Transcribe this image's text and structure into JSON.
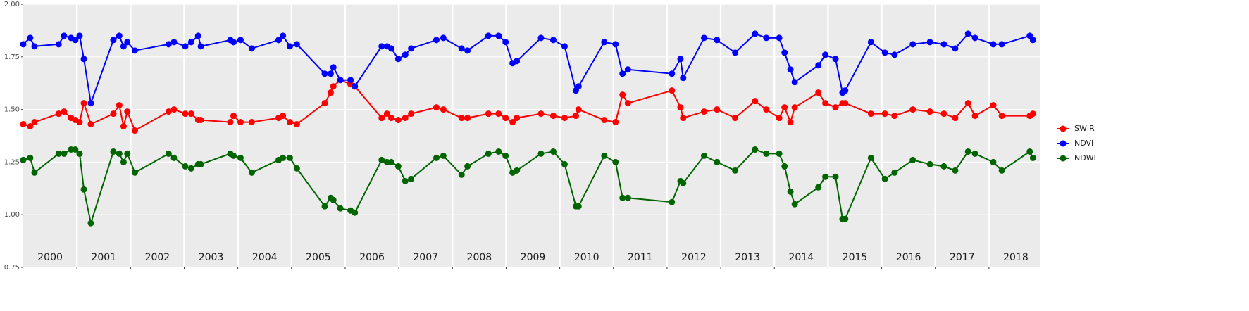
{
  "chart_data": {
    "type": "line",
    "x": [
      2000.0,
      2000.13,
      2000.21,
      2000.66,
      2000.76,
      2000.89,
      2000.97,
      2001.05,
      2001.13,
      2001.26,
      2001.68,
      2001.79,
      2001.87,
      2001.94,
      2002.08,
      2002.71,
      2002.81,
      2003.02,
      2003.13,
      2003.26,
      2003.31,
      2003.86,
      2003.92,
      2004.05,
      2004.26,
      2004.76,
      2004.84,
      2004.97,
      2005.1,
      2005.62,
      2005.73,
      2005.78,
      2005.91,
      2006.1,
      2006.18,
      2006.68,
      2006.78,
      2006.86,
      2006.99,
      2007.12,
      2007.23,
      2007.7,
      2007.83,
      2008.17,
      2008.28,
      2008.67,
      2008.86,
      2008.99,
      2009.12,
      2009.2,
      2009.65,
      2009.88,
      2010.09,
      2010.3,
      2010.35,
      2010.83,
      2011.04,
      2011.17,
      2011.27,
      2012.09,
      2012.25,
      2012.3,
      2012.69,
      2012.93,
      2013.27,
      2013.64,
      2013.85,
      2014.09,
      2014.19,
      2014.3,
      2014.38,
      2014.82,
      2014.95,
      2015.14,
      2015.27,
      2015.32,
      2015.8,
      2016.06,
      2016.24,
      2016.58,
      2016.9,
      2017.16,
      2017.37,
      2017.61,
      2017.74,
      2018.08,
      2018.24,
      2018.76,
      2018.82
    ],
    "series": [
      {
        "name": "SWIR",
        "color": "#ff0000",
        "values": [
          1.43,
          1.42,
          1.44,
          1.48,
          1.49,
          1.46,
          1.45,
          1.44,
          1.53,
          1.43,
          1.48,
          1.52,
          1.42,
          1.49,
          1.4,
          1.49,
          1.5,
          1.48,
          1.48,
          1.45,
          1.45,
          1.44,
          1.47,
          1.44,
          1.44,
          1.46,
          1.47,
          1.44,
          1.43,
          1.53,
          1.58,
          1.61,
          1.64,
          1.62,
          1.61,
          1.46,
          1.48,
          1.46,
          1.45,
          1.46,
          1.48,
          1.51,
          1.5,
          1.46,
          1.46,
          1.48,
          1.48,
          1.46,
          1.44,
          1.46,
          1.48,
          1.47,
          1.46,
          1.47,
          1.5,
          1.45,
          1.44,
          1.57,
          1.53,
          1.59,
          1.51,
          1.46,
          1.49,
          1.5,
          1.46,
          1.54,
          1.5,
          1.46,
          1.51,
          1.44,
          1.51,
          1.58,
          1.53,
          1.51,
          1.53,
          1.53,
          1.48,
          1.48,
          1.47,
          1.5,
          1.49,
          1.48,
          1.46,
          1.53,
          1.47,
          1.52,
          1.47,
          1.47,
          1.48
        ]
      },
      {
        "name": "NDVI",
        "color": "#0000ff",
        "values": [
          1.81,
          1.84,
          1.8,
          1.81,
          1.85,
          1.84,
          1.83,
          1.85,
          1.74,
          1.53,
          1.83,
          1.85,
          1.8,
          1.82,
          1.78,
          1.81,
          1.82,
          1.8,
          1.82,
          1.85,
          1.8,
          1.83,
          1.82,
          1.83,
          1.79,
          1.83,
          1.85,
          1.8,
          1.81,
          1.67,
          1.67,
          1.7,
          1.64,
          1.64,
          1.61,
          1.8,
          1.8,
          1.79,
          1.74,
          1.76,
          1.79,
          1.83,
          1.84,
          1.79,
          1.78,
          1.85,
          1.85,
          1.82,
          1.72,
          1.73,
          1.84,
          1.83,
          1.8,
          1.59,
          1.61,
          1.82,
          1.81,
          1.67,
          1.69,
          1.67,
          1.74,
          1.65,
          1.84,
          1.83,
          1.77,
          1.86,
          1.84,
          1.84,
          1.77,
          1.69,
          1.63,
          1.71,
          1.76,
          1.74,
          1.58,
          1.59,
          1.82,
          1.77,
          1.76,
          1.81,
          1.82,
          1.81,
          1.79,
          1.86,
          1.84,
          1.81,
          1.81,
          1.85,
          1.83
        ]
      },
      {
        "name": "NDWI",
        "color": "#006400",
        "values": [
          1.26,
          1.27,
          1.2,
          1.29,
          1.29,
          1.31,
          1.31,
          1.29,
          1.12,
          0.96,
          1.3,
          1.29,
          1.25,
          1.29,
          1.2,
          1.29,
          1.27,
          1.23,
          1.22,
          1.24,
          1.24,
          1.29,
          1.28,
          1.27,
          1.2,
          1.26,
          1.27,
          1.27,
          1.22,
          1.04,
          1.08,
          1.07,
          1.03,
          1.02,
          1.01,
          1.26,
          1.25,
          1.25,
          1.23,
          1.16,
          1.17,
          1.27,
          1.28,
          1.19,
          1.23,
          1.29,
          1.3,
          1.28,
          1.2,
          1.21,
          1.29,
          1.3,
          1.24,
          1.04,
          1.04,
          1.28,
          1.25,
          1.08,
          1.08,
          1.06,
          1.16,
          1.15,
          1.28,
          1.25,
          1.21,
          1.31,
          1.29,
          1.29,
          1.23,
          1.11,
          1.05,
          1.13,
          1.18,
          1.18,
          0.98,
          0.98,
          1.27,
          1.17,
          1.2,
          1.26,
          1.24,
          1.23,
          1.21,
          1.3,
          1.29,
          1.25,
          1.21,
          1.3,
          1.27
        ]
      }
    ],
    "xlim": [
      2000,
      2018.96
    ],
    "xticks": [
      2001,
      2002,
      2003,
      2004,
      2005,
      2006,
      2007,
      2008,
      2009,
      2010,
      2011,
      2012,
      2013,
      2014,
      2015,
      2016,
      2017,
      2018
    ],
    "year_bands": [
      {
        "value": 2000,
        "label": "2000"
      },
      {
        "value": 2001,
        "label": "2001"
      },
      {
        "value": 2002,
        "label": "2002"
      },
      {
        "value": 2003,
        "label": "2003"
      },
      {
        "value": 2004,
        "label": "2004"
      },
      {
        "value": 2005,
        "label": "2005"
      },
      {
        "value": 2006,
        "label": "2006"
      },
      {
        "value": 2007,
        "label": "2007"
      },
      {
        "value": 2008,
        "label": "2008"
      },
      {
        "value": 2009,
        "label": "2009"
      },
      {
        "value": 2010,
        "label": "2010"
      },
      {
        "value": 2011,
        "label": "2011"
      },
      {
        "value": 2012,
        "label": "2012"
      },
      {
        "value": 2013,
        "label": "2013"
      },
      {
        "value": 2014,
        "label": "2014"
      },
      {
        "value": 2015,
        "label": "2015"
      },
      {
        "value": 2016,
        "label": "2016"
      },
      {
        "value": 2017,
        "label": "2017"
      },
      {
        "value": 2018,
        "label": "2018"
      }
    ],
    "ylim": [
      0.75,
      2.0
    ],
    "yticks": [
      0.75,
      {
        "value": 1.0,
        "label": "1.00"
      },
      1.25,
      {
        "value": 1.5,
        "label": "1.50"
      },
      1.75,
      {
        "value": 2.0,
        "label": "2.00"
      }
    ],
    "grid": true
  }
}
